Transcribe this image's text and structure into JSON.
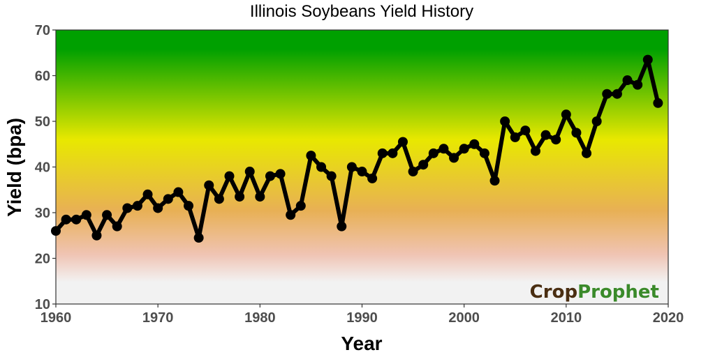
{
  "chart_data": {
    "type": "line",
    "title": "Illinois Soybeans Yield History",
    "xlabel": "Year",
    "ylabel": "Yield (bpa)",
    "xlim": [
      1960,
      2020
    ],
    "ylim": [
      10,
      70
    ],
    "xticks": [
      1960,
      1970,
      1980,
      1990,
      2000,
      2010,
      2020
    ],
    "yticks": [
      10,
      20,
      30,
      40,
      50,
      60,
      70
    ],
    "grid": false,
    "background": "vertical gradient: light gray at low yields, pink, orange, yellow, green at high yields",
    "gradient_colors": {
      "low": "#f2f2f2",
      "pink": "#f0c4b4",
      "orange": "#e8b055",
      "yellow": "#e8e800",
      "green": "#00a000"
    },
    "line_color": "#000000",
    "x": [
      1960,
      1961,
      1962,
      1963,
      1964,
      1965,
      1966,
      1967,
      1968,
      1969,
      1970,
      1971,
      1972,
      1973,
      1974,
      1975,
      1976,
      1977,
      1978,
      1979,
      1980,
      1981,
      1982,
      1983,
      1984,
      1985,
      1986,
      1987,
      1988,
      1989,
      1990,
      1991,
      1992,
      1993,
      1994,
      1995,
      1996,
      1997,
      1998,
      1999,
      2000,
      2001,
      2002,
      2003,
      2004,
      2005,
      2006,
      2007,
      2008,
      2009,
      2010,
      2011,
      2012,
      2013,
      2014,
      2015,
      2016,
      2017,
      2018,
      2019
    ],
    "y": [
      26,
      28.5,
      28.5,
      29.5,
      25,
      29.5,
      27,
      31,
      31.5,
      34,
      31,
      33,
      34.5,
      31.5,
      24.5,
      36,
      33,
      38,
      33.5,
      39,
      33.5,
      38,
      38.5,
      29.5,
      31.5,
      42.5,
      40,
      38,
      27,
      40,
      39,
      37.5,
      43,
      43,
      45.5,
      39,
      40.5,
      43,
      44,
      42,
      44,
      45,
      43,
      37,
      50,
      46.5,
      48,
      43.5,
      47,
      46,
      51.5,
      47.5,
      43,
      50,
      56,
      56,
      59,
      58,
      63.5,
      54
    ]
  },
  "logo": {
    "text": "CropProphet",
    "part1": "Crop",
    "part2": "Prophet",
    "color1": "#4a2e12",
    "color2": "#3a8a2a"
  }
}
